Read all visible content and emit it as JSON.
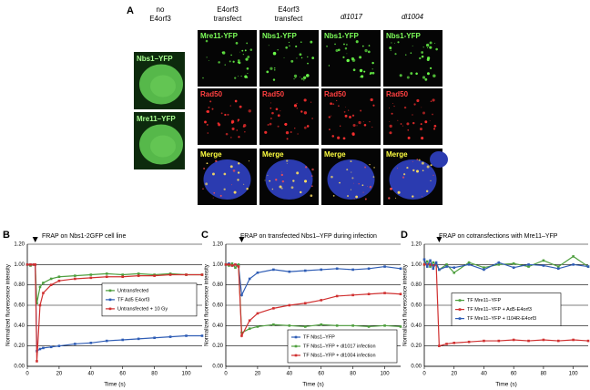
{
  "panel_a": {
    "label": "A",
    "headers": [
      [
        "no",
        "E4orf3"
      ],
      [
        "E4orf3",
        "transfect"
      ],
      [
        "E4orf3",
        "transfect"
      ],
      [
        "dl1017"
      ],
      [
        "dl1004"
      ]
    ],
    "left_images": [
      "Nbs1–YFP",
      "Mre11–YFP"
    ],
    "grid_images": [
      [
        "Mre11-YFP",
        "Nbs1-YFP",
        "Nbs1-YFP",
        "Nbs1-YFP"
      ],
      [
        "Rad50",
        "Rad50",
        "Rad50",
        "Rad50"
      ],
      [
        "Merge",
        "Merge",
        "Merge",
        "Merge"
      ]
    ]
  },
  "chart_data": [
    {
      "type": "line",
      "label": "B",
      "title": "FRAP on Nbs1-2GFP cell line",
      "x_label": "Time (s)",
      "y_label": "Normalized fluorescence intensity",
      "x": [
        0,
        2,
        4,
        5,
        6,
        8,
        10,
        15,
        20,
        30,
        40,
        50,
        60,
        70,
        80,
        90,
        100,
        110
      ],
      "series": [
        {
          "name": "Untransfected",
          "color": "#4f9f3f",
          "values": [
            1.0,
            0.99,
            1.0,
            1.0,
            0.62,
            0.78,
            0.82,
            0.86,
            0.88,
            0.89,
            0.9,
            0.91,
            0.9,
            0.91,
            0.9,
            0.91,
            0.9,
            0.9
          ]
        },
        {
          "name": "TF Ad5 E4orf3",
          "color": "#2f5db5",
          "values": [
            1.0,
            1.0,
            1.0,
            1.0,
            0.15,
            0.17,
            0.18,
            0.19,
            0.2,
            0.22,
            0.23,
            0.25,
            0.26,
            0.27,
            0.28,
            0.29,
            0.3,
            0.3
          ]
        },
        {
          "name": "Untransfected + 10 Gy",
          "color": "#d03030",
          "values": [
            1.0,
            1.0,
            1.0,
            1.0,
            0.05,
            0.6,
            0.72,
            0.8,
            0.84,
            0.86,
            0.87,
            0.88,
            0.88,
            0.89,
            0.89,
            0.9,
            0.9,
            0.9
          ]
        }
      ],
      "xlim": [
        0,
        110
      ],
      "xticks": [
        0,
        20,
        40,
        60,
        80,
        100
      ],
      "ylim": [
        0,
        1.2
      ],
      "yticks": [
        {
          "value": 0,
          "label": "0.00"
        },
        {
          "value": 0.2,
          "label": "0.20"
        },
        {
          "value": 0.4,
          "label": "0.40"
        },
        {
          "value": 0.6,
          "label": "0.60"
        },
        {
          "value": 0.8,
          "label": "0.80"
        },
        {
          "value": 1.0,
          "label": "1.00"
        },
        {
          "value": 1.2,
          "label": "1.20"
        }
      ],
      "grid": true,
      "legend": "right"
    },
    {
      "type": "line",
      "label": "C",
      "title": "FRAP on transfected Nbs1–YFP during infection",
      "x_label": "Time (s)",
      "y_label": "Normalized fluorescence intensity",
      "x": [
        0,
        2,
        4,
        6,
        8,
        10,
        15,
        20,
        30,
        40,
        50,
        60,
        70,
        80,
        90,
        100,
        110
      ],
      "series": [
        {
          "name": "TF Nbs1–YFP",
          "color": "#2f5db5",
          "values": [
            1.0,
            1.01,
            0.99,
            1.0,
            0.99,
            0.7,
            0.86,
            0.92,
            0.95,
            0.93,
            0.94,
            0.95,
            0.96,
            0.95,
            0.96,
            0.98,
            0.96
          ]
        },
        {
          "name": "TF Nbs1–YFP + dl1017 infection",
          "color": "#4f9f3f",
          "values": [
            1.0,
            0.99,
            1.01,
            0.97,
            1.0,
            0.33,
            0.37,
            0.39,
            0.41,
            0.4,
            0.39,
            0.41,
            0.4,
            0.4,
            0.39,
            0.4,
            0.39
          ]
        },
        {
          "name": "TF Nbs1–YFP + dl1004 infection",
          "color": "#d03030",
          "values": [
            1.0,
            1.0,
            0.99,
            1.0,
            0.98,
            0.3,
            0.45,
            0.52,
            0.57,
            0.6,
            0.62,
            0.65,
            0.69,
            0.7,
            0.71,
            0.72,
            0.71
          ]
        }
      ],
      "xlim": [
        0,
        110
      ],
      "xticks": [
        0,
        20,
        40,
        60,
        80,
        100
      ],
      "ylim": [
        0,
        1.2
      ],
      "yticks": [
        {
          "value": 0,
          "label": "0.00"
        },
        {
          "value": 0.2,
          "label": "0.20"
        },
        {
          "value": 0.4,
          "label": "0.40"
        },
        {
          "value": 0.6,
          "label": "0.60"
        },
        {
          "value": 0.8,
          "label": "0.80"
        },
        {
          "value": 1.0,
          "label": "1.00"
        },
        {
          "value": 1.2,
          "label": "1.20"
        }
      ],
      "grid": true,
      "legend": "lower right"
    },
    {
      "type": "line",
      "label": "D",
      "title": "FRAP on cotransfections with Mre11–YFP",
      "x_label": "Time (s)",
      "y_label": "Normalized fluorescence intensity",
      "x": [
        0,
        2,
        4,
        6,
        8,
        10,
        15,
        20,
        30,
        40,
        50,
        60,
        70,
        80,
        90,
        100,
        110
      ],
      "series": [
        {
          "name": "TF Mre11–YFP",
          "color": "#4f9f3f",
          "values": [
            1.0,
            1.03,
            0.98,
            1.02,
            1.0,
            0.95,
            1.0,
            0.92,
            1.02,
            0.97,
            1.0,
            1.01,
            0.98,
            1.04,
            0.98,
            1.08,
            0.98
          ]
        },
        {
          "name": "TF Mre11–YFP + Ad5-E4orf3",
          "color": "#d03030",
          "values": [
            1.0,
            1.0,
            1.0,
            0.99,
            1.0,
            0.2,
            0.22,
            0.23,
            0.24,
            0.25,
            0.25,
            0.26,
            0.25,
            0.26,
            0.25,
            0.26,
            0.25
          ]
        },
        {
          "name": "TF Mre11–YFP + I104R-E4orf3",
          "color": "#2f5db5",
          "values": [
            1.05,
            0.98,
            1.04,
            0.96,
            1.02,
            0.95,
            0.98,
            0.97,
            1.0,
            0.95,
            1.02,
            0.97,
            1.0,
            0.99,
            0.96,
            1.0,
            0.98
          ]
        }
      ],
      "xlim": [
        0,
        110
      ],
      "xticks": [
        0,
        20,
        40,
        60,
        80,
        100
      ],
      "ylim": [
        0,
        1.2
      ],
      "yticks": [
        {
          "value": 0,
          "label": "0.00"
        },
        {
          "value": 0.2,
          "label": "0.20"
        },
        {
          "value": 0.4,
          "label": "0.40"
        },
        {
          "value": 0.6,
          "label": "0.60"
        },
        {
          "value": 0.8,
          "label": "0.80"
        },
        {
          "value": 1.0,
          "label": "1.00"
        },
        {
          "value": 1.2,
          "label": "1.20"
        }
      ],
      "grid": true,
      "legend": "center"
    }
  ]
}
